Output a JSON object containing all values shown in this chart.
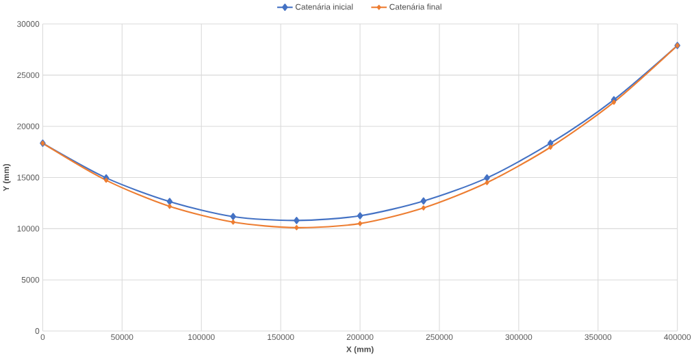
{
  "chart_data": {
    "type": "line",
    "xlabel": "X (mm)",
    "ylabel": "Y (mm)",
    "x": [
      0,
      40000,
      80000,
      120000,
      160000,
      200000,
      240000,
      280000,
      320000,
      360000,
      400000
    ],
    "series": [
      {
        "name": "Catenária inicial",
        "color": "#4472c4",
        "values": [
          18350,
          14960,
          12650,
          11180,
          10800,
          11260,
          12700,
          14960,
          18350,
          22600,
          27900
        ]
      },
      {
        "name": "Catenária final",
        "color": "#ed7d31",
        "values": [
          18350,
          14730,
          12180,
          10640,
          10100,
          10500,
          12030,
          14500,
          17960,
          22360,
          27900
        ]
      }
    ],
    "xlim": [
      0,
      400000
    ],
    "xticks": [
      0,
      50000,
      100000,
      150000,
      200000,
      250000,
      300000,
      350000,
      400000
    ],
    "ylim": [
      0,
      30000
    ],
    "yticks": [
      0,
      5000,
      10000,
      15000,
      20000,
      25000,
      30000
    ],
    "grid": true,
    "legend": "top",
    "marker": "diamond",
    "line_style": "solid"
  }
}
